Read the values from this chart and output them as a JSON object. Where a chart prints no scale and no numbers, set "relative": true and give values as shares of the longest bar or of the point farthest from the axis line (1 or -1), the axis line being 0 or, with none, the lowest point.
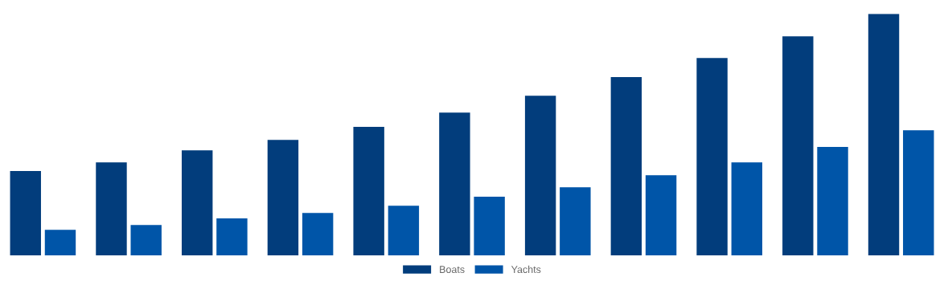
{
  "chart_data": {
    "type": "bar",
    "relative": true,
    "categories": [
      null,
      null,
      null,
      null,
      null,
      null,
      null,
      null,
      null,
      null,
      null
    ],
    "series": [
      {
        "name": "Boats",
        "color": "#023d7c",
        "values": [
          0.349,
          0.385,
          0.435,
          0.478,
          0.532,
          0.591,
          0.661,
          0.738,
          0.817,
          0.907,
          1
        ]
      },
      {
        "name": "Yachts",
        "color": "#0055a8",
        "values": [
          0.106,
          0.126,
          0.153,
          0.176,
          0.206,
          0.243,
          0.282,
          0.332,
          0.385,
          0.449,
          0.518
        ]
      }
    ],
    "legend": "bottom",
    "grid": false
  }
}
